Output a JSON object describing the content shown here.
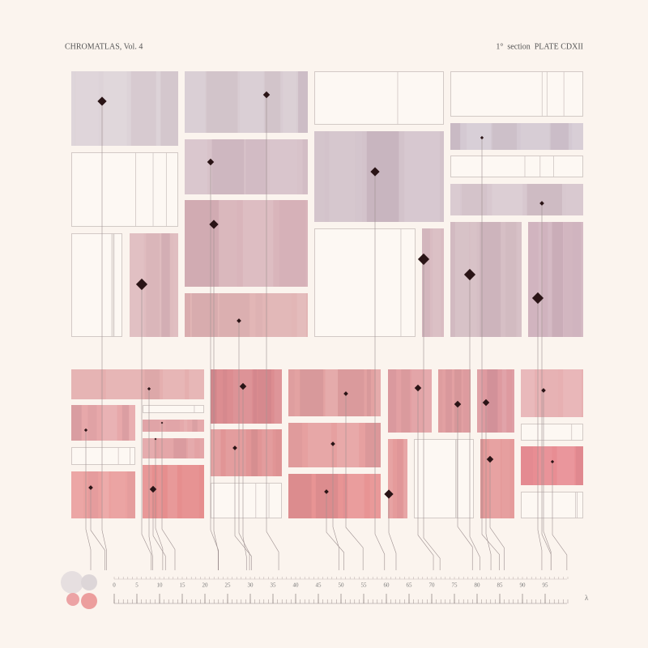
{
  "header": {
    "title": "CHROMATLAS, Vol. 4",
    "plate": "1°  section  PLATE CDXII"
  },
  "scale": {
    "ticks": [
      0,
      5,
      10,
      15,
      20,
      25,
      30,
      35,
      40,
      45,
      50,
      55,
      60,
      65,
      70,
      75,
      80,
      85,
      90,
      95
    ],
    "label": "λ"
  }
}
